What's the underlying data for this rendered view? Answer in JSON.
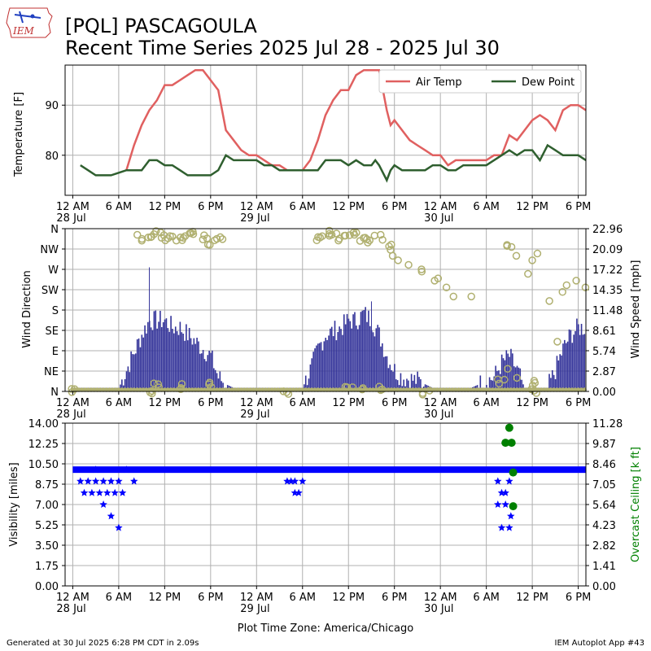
{
  "header": {
    "title": "[PQL] PASCAGOULA",
    "subtitle": "Recent Time Series 2025 Jul 28 - 2025 Jul 30",
    "logo_text": "IEM"
  },
  "footer": {
    "generated": "Generated at 30 Jul 2025 6:28 PM CDT in 2.09s",
    "app": "IEM Autoplot App #43"
  },
  "colors": {
    "air_temp": "#e06060",
    "dew_point": "#2f5f2f",
    "wind_speed": "#333399",
    "wind_dir": "#b0b070",
    "visibility": "#0000ff",
    "ceiling": "#008000"
  },
  "chart_data": [
    {
      "type": "line",
      "name": "temperature",
      "ylabel": "Temperature [F]",
      "ylim": [
        72,
        98
      ],
      "yticks": [
        80,
        90
      ],
      "xlim_hours": [
        -1,
        67
      ],
      "xticks": [
        {
          "h": 0,
          "label": "12 AM",
          "date": "28 Jul"
        },
        {
          "h": 6,
          "label": "6 AM"
        },
        {
          "h": 12,
          "label": "12 PM"
        },
        {
          "h": 18,
          "label": "6 PM"
        },
        {
          "h": 24,
          "label": "12 AM",
          "date": "29 Jul"
        },
        {
          "h": 30,
          "label": "6 AM"
        },
        {
          "h": 36,
          "label": "12 PM"
        },
        {
          "h": 42,
          "label": "6 PM"
        },
        {
          "h": 48,
          "label": "12 AM",
          "date": "30 Jul"
        },
        {
          "h": 54,
          "label": "6 AM"
        },
        {
          "h": 60,
          "label": "12 PM"
        },
        {
          "h": 66,
          "label": "6 PM"
        }
      ],
      "grid": true,
      "legend": "top-right",
      "series": [
        {
          "name": "Air Temp",
          "points": [
            [
              7,
              77
            ],
            [
              8,
              82
            ],
            [
              9,
              86
            ],
            [
              10,
              89
            ],
            [
              11,
              91
            ],
            [
              12,
              94
            ],
            [
              13,
              94
            ],
            [
              14,
              95
            ],
            [
              15,
              96
            ],
            [
              16,
              97
            ],
            [
              17,
              97
            ],
            [
              18,
              95
            ],
            [
              19,
              93
            ],
            [
              20,
              85
            ],
            [
              21,
              83
            ],
            [
              22,
              81
            ],
            [
              23,
              80
            ],
            [
              24,
              80
            ],
            [
              25,
              79
            ],
            [
              26,
              78
            ],
            [
              27,
              78
            ],
            [
              28,
              77
            ],
            [
              29,
              77
            ],
            [
              30,
              77
            ],
            [
              31,
              79
            ],
            [
              32,
              83
            ],
            [
              33,
              88
            ],
            [
              34,
              91
            ],
            [
              35,
              93
            ],
            [
              36,
              93
            ],
            [
              37,
              96
            ],
            [
              38,
              97
            ],
            [
              39,
              97
            ],
            [
              40,
              97
            ],
            [
              41,
              89
            ],
            [
              41.5,
              86
            ],
            [
              42,
              87
            ],
            [
              43,
              85
            ],
            [
              44,
              83
            ],
            [
              45,
              82
            ],
            [
              46,
              81
            ],
            [
              47,
              80
            ],
            [
              48,
              80
            ],
            [
              49,
              78
            ],
            [
              50,
              79
            ],
            [
              51,
              79
            ],
            [
              52,
              79
            ],
            [
              53,
              79
            ],
            [
              54,
              79
            ],
            [
              55,
              80
            ],
            [
              56,
              80
            ],
            [
              57,
              84
            ],
            [
              58,
              83
            ],
            [
              59,
              85
            ],
            [
              60,
              87
            ],
            [
              61,
              88
            ],
            [
              62,
              87
            ],
            [
              63,
              85
            ],
            [
              64,
              89
            ],
            [
              65,
              90
            ],
            [
              66,
              90
            ],
            [
              67,
              89
            ]
          ]
        },
        {
          "name": "Dew Point",
          "points": [
            [
              1,
              78
            ],
            [
              2,
              77
            ],
            [
              3,
              76
            ],
            [
              4,
              76
            ],
            [
              5,
              76
            ],
            [
              6,
              76.5
            ],
            [
              7,
              77
            ],
            [
              8,
              77
            ],
            [
              9,
              77
            ],
            [
              10,
              79
            ],
            [
              11,
              79
            ],
            [
              12,
              78
            ],
            [
              13,
              78
            ],
            [
              14,
              77
            ],
            [
              15,
              76
            ],
            [
              16,
              76
            ],
            [
              17,
              76
            ],
            [
              18,
              76
            ],
            [
              19,
              77
            ],
            [
              20,
              80
            ],
            [
              21,
              79
            ],
            [
              22,
              79
            ],
            [
              23,
              79
            ],
            [
              24,
              79
            ],
            [
              25,
              78
            ],
            [
              26,
              78
            ],
            [
              27,
              77
            ],
            [
              28,
              77
            ],
            [
              29,
              77
            ],
            [
              30,
              77
            ],
            [
              31,
              77
            ],
            [
              32,
              77
            ],
            [
              33,
              79
            ],
            [
              34,
              79
            ],
            [
              35,
              79
            ],
            [
              36,
              78
            ],
            [
              37,
              79
            ],
            [
              38,
              78
            ],
            [
              39,
              78
            ],
            [
              39.5,
              79
            ],
            [
              40,
              78
            ],
            [
              41,
              75
            ],
            [
              41.5,
              77
            ],
            [
              42,
              78
            ],
            [
              43,
              77
            ],
            [
              44,
              77
            ],
            [
              45,
              77
            ],
            [
              46,
              77
            ],
            [
              47,
              78
            ],
            [
              48,
              78
            ],
            [
              49,
              77
            ],
            [
              50,
              77
            ],
            [
              51,
              78
            ],
            [
              52,
              78
            ],
            [
              53,
              78
            ],
            [
              54,
              78
            ],
            [
              55,
              79
            ],
            [
              56,
              80
            ],
            [
              57,
              81
            ],
            [
              58,
              80
            ],
            [
              59,
              81
            ],
            [
              60,
              81
            ],
            [
              61,
              79
            ],
            [
              62,
              82
            ],
            [
              63,
              81
            ],
            [
              64,
              80
            ],
            [
              65,
              80
            ],
            [
              66,
              80
            ],
            [
              67,
              79
            ]
          ]
        }
      ]
    },
    {
      "type": "bar",
      "name": "wind",
      "ylabel": "Wind Direction",
      "y2label": "Wind Speed [mph]",
      "dir_ticks": [
        "N",
        "NE",
        "E",
        "SE",
        "S",
        "SW",
        "W",
        "NW",
        "N"
      ],
      "speed_ylim": [
        0,
        22.96
      ],
      "speed_ticks": [
        "0.00",
        "2.87",
        "5.74",
        "8.61",
        "11.48",
        "14.35",
        "17.22",
        "20.09",
        "22.96"
      ],
      "grid": true,
      "speed_series": {
        "name": "Wind Speed",
        "values": [
          [
            0,
            0.5
          ],
          [
            6,
            0.5
          ],
          [
            7,
            3
          ],
          [
            8,
            5.5
          ],
          [
            9,
            8
          ],
          [
            10,
            10
          ],
          [
            11,
            10
          ],
          [
            12,
            10
          ],
          [
            13,
            9
          ],
          [
            14,
            9
          ],
          [
            15,
            8
          ],
          [
            16,
            7
          ],
          [
            17,
            6
          ],
          [
            18,
            5
          ],
          [
            19,
            2
          ],
          [
            20,
            1
          ],
          [
            21,
            0.5
          ],
          [
            30,
            0.5
          ],
          [
            31,
            3
          ],
          [
            32,
            6
          ],
          [
            33,
            8
          ],
          [
            34,
            8.5
          ],
          [
            35,
            9
          ],
          [
            36,
            10
          ],
          [
            37,
            10
          ],
          [
            38,
            11
          ],
          [
            39,
            10
          ],
          [
            40,
            8
          ],
          [
            41,
            5
          ],
          [
            42,
            3
          ],
          [
            43,
            2
          ],
          [
            45,
            1.5
          ],
          [
            46,
            1
          ],
          [
            47,
            0.5
          ],
          [
            52,
            0.5
          ],
          [
            55,
            2
          ],
          [
            56,
            4
          ],
          [
            57,
            5
          ],
          [
            58,
            3
          ],
          [
            59,
            0.5
          ],
          [
            62,
            0.5
          ],
          [
            63,
            3
          ],
          [
            64,
            6
          ],
          [
            65,
            8
          ],
          [
            66,
            9
          ],
          [
            67,
            9
          ]
        ],
        "gusts": [
          [
            10,
            17.5
          ],
          [
            39,
            12.7
          ]
        ]
      },
      "direction_series": {
        "name": "Wind Direction",
        "points": [
          [
            9,
            340
          ],
          [
            10,
            345
          ],
          [
            11,
            350
          ],
          [
            12,
            340
          ],
          [
            13,
            345
          ],
          [
            14,
            335
          ],
          [
            15,
            345
          ],
          [
            16,
            350
          ],
          [
            17,
            340
          ],
          [
            18,
            330
          ],
          [
            19,
            340
          ],
          [
            11,
            12
          ],
          [
            14,
            10
          ],
          [
            18,
            15
          ],
          [
            32,
            340
          ],
          [
            33,
            345
          ],
          [
            34,
            350
          ],
          [
            35,
            340
          ],
          [
            36,
            345
          ],
          [
            37,
            350
          ],
          [
            38,
            340
          ],
          [
            39,
            335
          ],
          [
            40,
            340
          ],
          [
            41,
            320
          ],
          [
            42,
            300
          ],
          [
            43,
            290
          ],
          [
            44,
            280
          ],
          [
            45,
            270
          ],
          [
            46,
            265
          ],
          [
            47,
            245
          ],
          [
            48,
            250
          ],
          [
            49,
            230
          ],
          [
            50,
            210
          ],
          [
            52,
            210
          ],
          [
            36,
            15
          ],
          [
            38,
            10
          ],
          [
            40,
            5
          ],
          [
            57,
            320
          ],
          [
            58,
            300
          ],
          [
            59,
            260
          ],
          [
            60,
            290
          ],
          [
            61,
            305
          ],
          [
            62,
            200
          ],
          [
            63,
            110
          ],
          [
            64,
            220
          ],
          [
            65,
            235
          ],
          [
            66,
            245
          ],
          [
            67,
            230
          ],
          [
            57,
            50
          ],
          [
            58,
            30
          ],
          [
            60,
            20
          ],
          [
            56,
            20
          ],
          [
            0,
            0
          ],
          [
            10,
            0
          ],
          [
            28,
            0
          ],
          [
            46,
            0
          ],
          [
            60,
            0
          ]
        ]
      }
    },
    {
      "type": "scatter",
      "name": "visibility",
      "ylabel": "Visibility [miles]",
      "y2label": "Overcast Ceiling [k ft]",
      "ylim": [
        0,
        14
      ],
      "yticks": [
        "0.00",
        "1.75",
        "3.50",
        "5.25",
        "7.00",
        "8.75",
        "10.50",
        "12.25",
        "14.00"
      ],
      "y2lim": [
        0,
        11.28
      ],
      "y2ticks": [
        "0.00",
        "1.41",
        "2.82",
        "4.23",
        "5.64",
        "7.05",
        "8.46",
        "9.87",
        "11.28"
      ],
      "xlabel": "Plot Time Zone: America/Chicago",
      "grid": true,
      "visibility_series": {
        "name": "Visibility",
        "baseline": 10,
        "baseline_ranges": [
          [
            0,
            67
          ]
        ],
        "dips": [
          [
            1,
            9
          ],
          [
            1.5,
            8
          ],
          [
            2,
            9
          ],
          [
            2.5,
            8
          ],
          [
            3,
            10
          ],
          [
            3,
            9
          ],
          [
            3.5,
            8
          ],
          [
            4,
            9
          ],
          [
            4,
            7
          ],
          [
            4.5,
            8
          ],
          [
            5,
            9
          ],
          [
            5,
            6
          ],
          [
            5.5,
            8
          ],
          [
            6,
            5
          ],
          [
            6,
            9
          ],
          [
            6.5,
            8
          ],
          [
            7,
            10
          ],
          [
            8,
            9
          ],
          [
            28,
            9
          ],
          [
            28.5,
            9
          ],
          [
            29,
            9
          ],
          [
            29,
            8
          ],
          [
            29.5,
            8
          ],
          [
            30,
            9
          ],
          [
            55.5,
            9
          ],
          [
            55.5,
            7
          ],
          [
            56,
            8
          ],
          [
            56,
            5
          ],
          [
            56.5,
            7
          ],
          [
            56.5,
            8
          ],
          [
            57,
            9
          ],
          [
            57,
            5
          ],
          [
            57.2,
            6
          ]
        ]
      },
      "ceiling_series": {
        "name": "Overcast Ceiling",
        "points": [
          [
            56.5,
            9.92
          ],
          [
            57.0,
            10.96
          ],
          [
            57.3,
            9.92
          ],
          [
            57.5,
            7.86
          ],
          [
            57.5,
            5.52
          ]
        ]
      }
    }
  ]
}
